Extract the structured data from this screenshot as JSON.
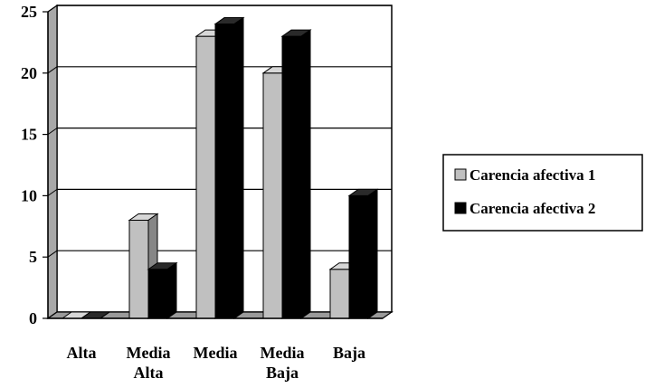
{
  "chart_data": {
    "type": "bar",
    "title": "",
    "xlabel": "",
    "ylabel": "",
    "ylim": [
      0,
      25
    ],
    "yticks": [
      0,
      5,
      10,
      15,
      20,
      25
    ],
    "grid": true,
    "style": "3d-clustered-column",
    "legend_position": "right",
    "categories": [
      [
        "Alta"
      ],
      [
        "Media",
        "Alta"
      ],
      [
        "Media"
      ],
      [
        "Media",
        "Baja"
      ],
      [
        "Baja"
      ]
    ],
    "series": [
      {
        "name": "Carencia afectiva 1",
        "color": "#c0c0c0",
        "values": [
          0,
          8,
          23,
          20,
          4
        ]
      },
      {
        "name": "Carencia afectiva 2",
        "color": "#000000",
        "values": [
          0,
          4,
          24,
          23,
          10
        ]
      }
    ]
  }
}
